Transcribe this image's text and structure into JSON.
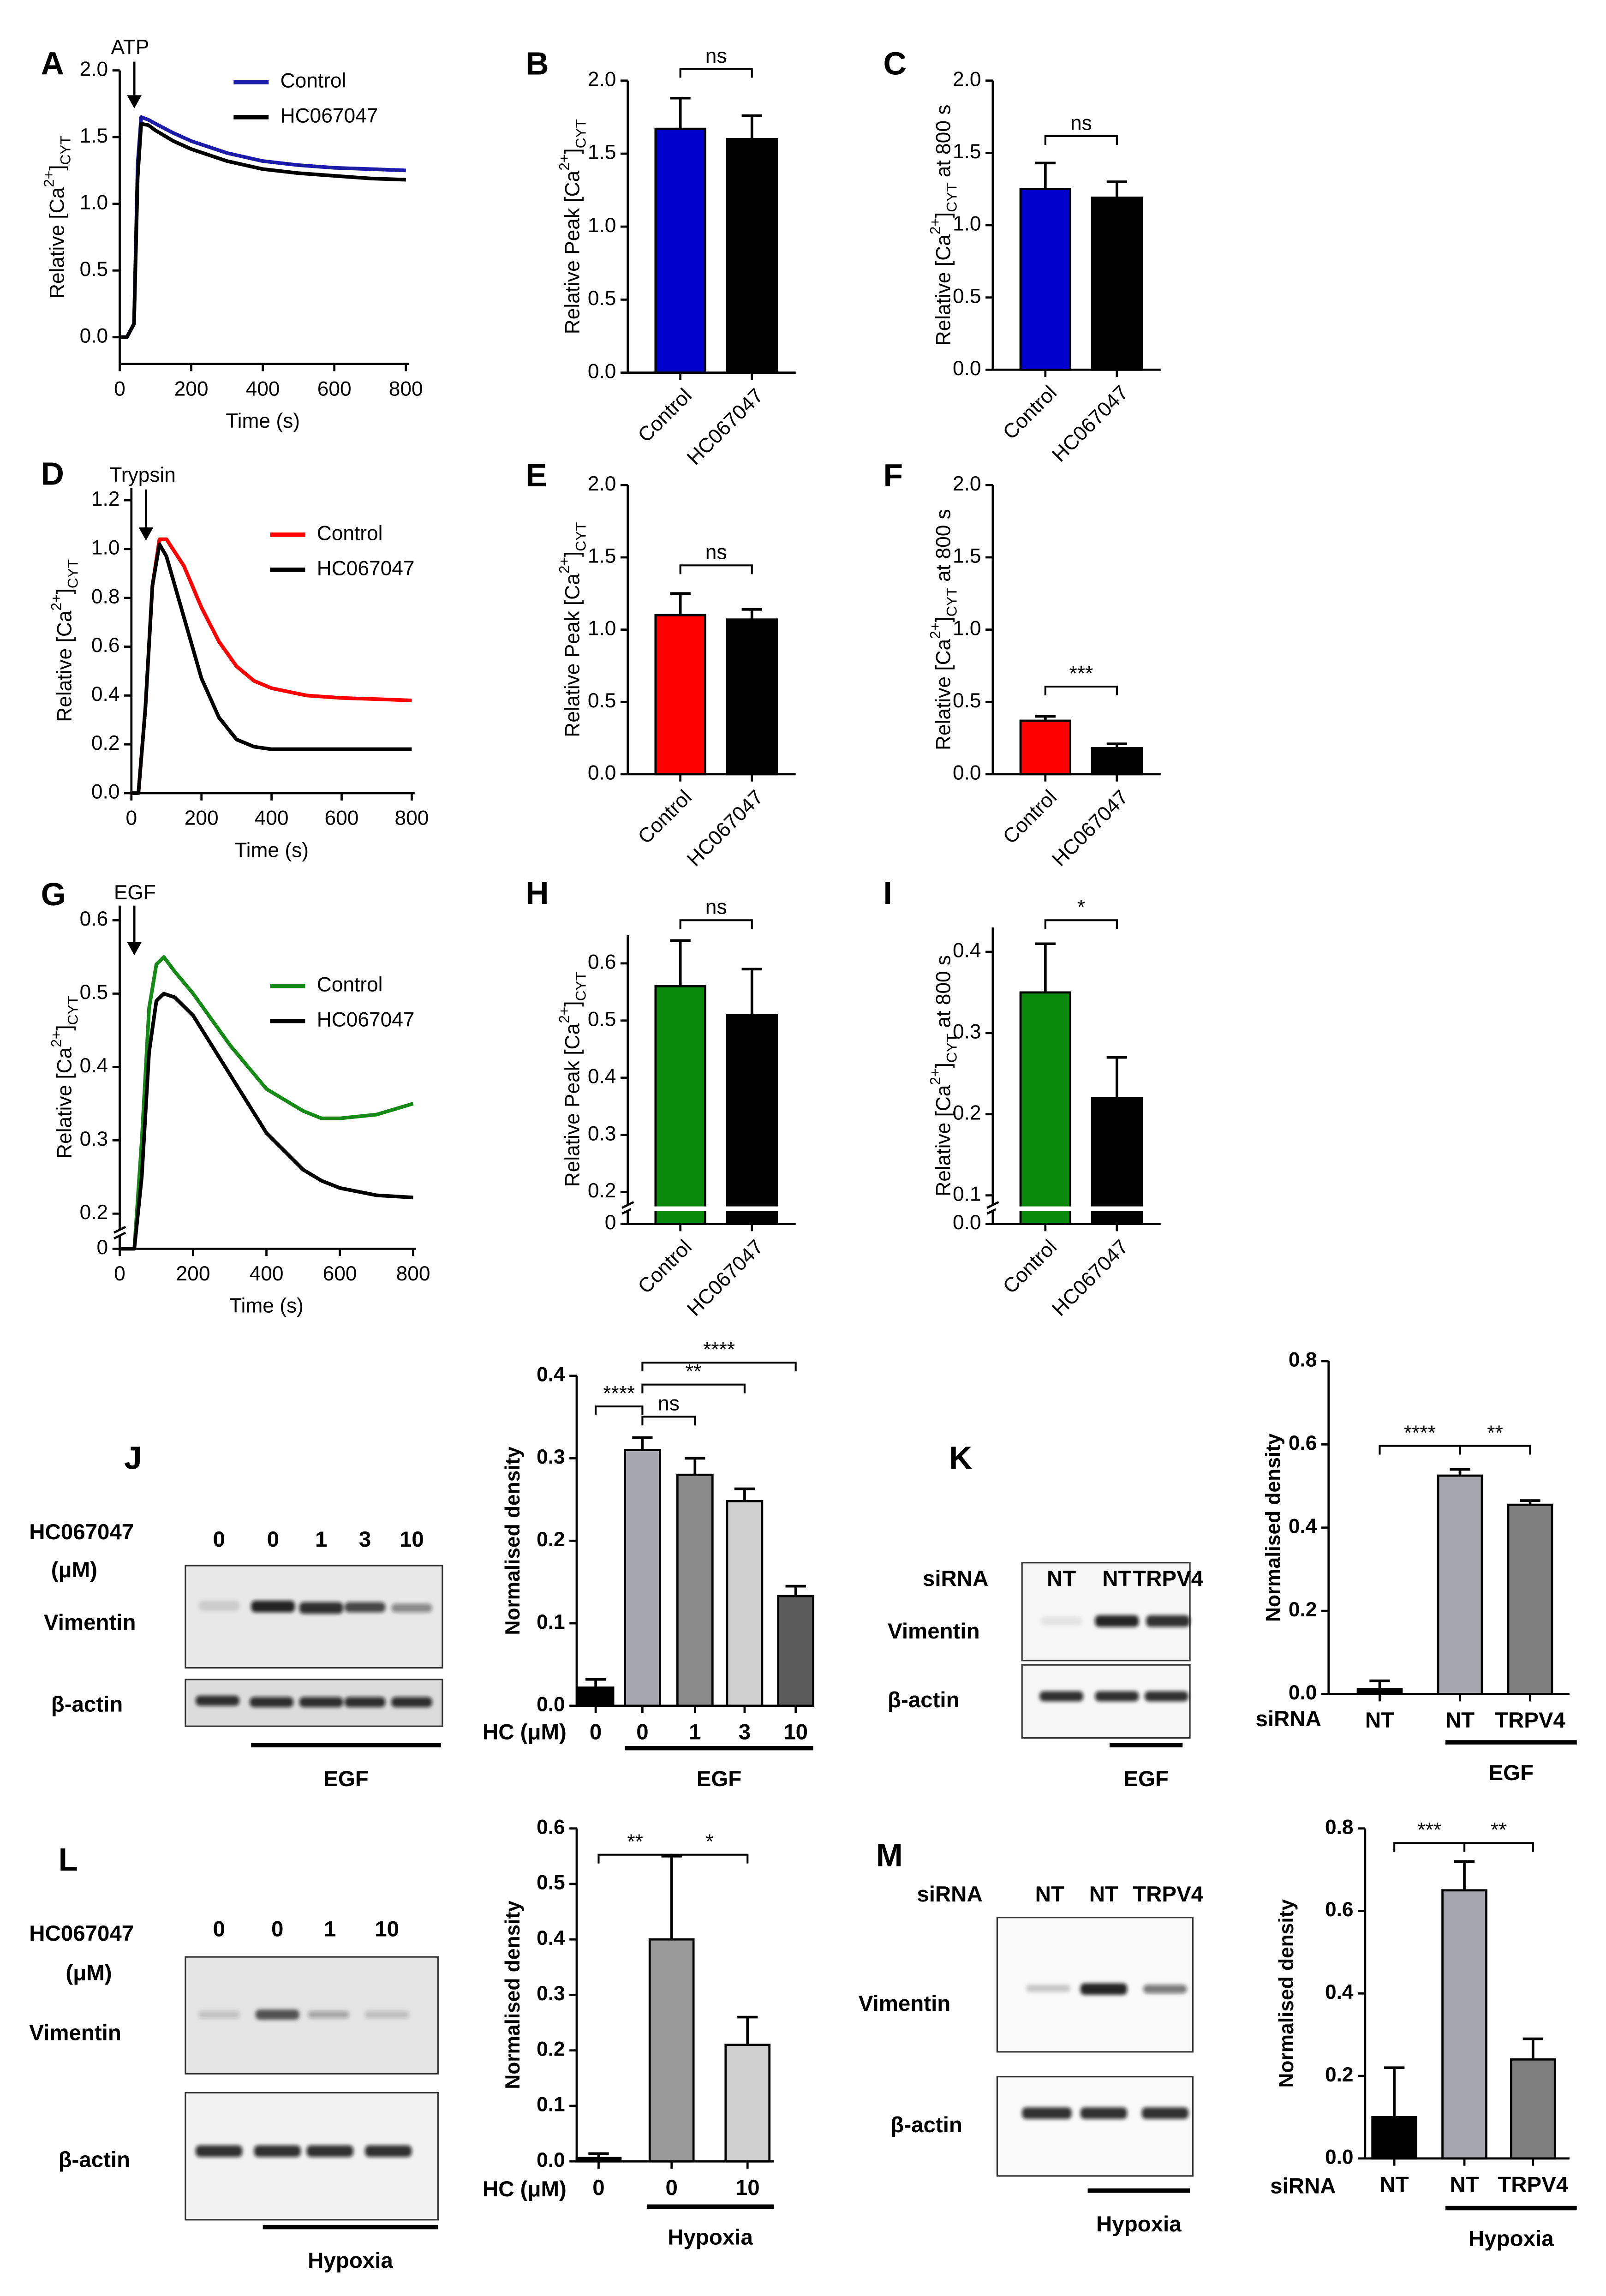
{
  "chart_data": [
    {
      "type": "line",
      "panel": "A",
      "annotation": "ATP",
      "xlabel": "Time (s)",
      "ylabel": [
        "Relative [Ca",
        "2+",
        "]",
        "CYT"
      ],
      "x": [
        0,
        20,
        40,
        50,
        60,
        80,
        100,
        150,
        200,
        300,
        400,
        500,
        600,
        700,
        800
      ],
      "series": [
        {
          "name": "Control",
          "color": "#1c1ca8",
          "values": [
            0,
            0,
            0.1,
            1.3,
            1.65,
            1.63,
            1.6,
            1.53,
            1.47,
            1.38,
            1.32,
            1.29,
            1.27,
            1.26,
            1.25
          ]
        },
        {
          "name": "HC067047",
          "color": "#000000",
          "values": [
            0,
            0,
            0.1,
            1.2,
            1.6,
            1.59,
            1.55,
            1.47,
            1.41,
            1.32,
            1.26,
            1.23,
            1.21,
            1.19,
            1.18
          ]
        }
      ],
      "xlim": [
        0,
        800
      ],
      "xticks": [
        0,
        200,
        400,
        600,
        800
      ],
      "ylim": [
        -0.2,
        2.0
      ],
      "yticks": [
        {
          "value": 0,
          "label": "0.0"
        },
        0.5,
        {
          "value": 1,
          "label": "1.0"
        },
        1.5,
        {
          "value": 2,
          "label": "2.0"
        }
      ]
    },
    {
      "type": "bar",
      "panel": "B",
      "ylabel": [
        "Relative Peak [Ca",
        "2+",
        "]",
        "CYT"
      ],
      "categories": [
        "Control",
        "HC067047"
      ],
      "values": [
        1.67,
        1.6
      ],
      "errors": [
        0.21,
        0.16
      ],
      "colors": [
        "#0000cc",
        "#000000"
      ],
      "annotations": [
        "ns"
      ],
      "ylim": [
        0,
        2.0
      ],
      "yticks": [
        {
          "value": 0,
          "label": "0.0"
        },
        0.5,
        {
          "value": 1,
          "label": "1.0"
        },
        1.5,
        {
          "value": 2,
          "label": "2.0"
        }
      ]
    },
    {
      "type": "bar",
      "panel": "C",
      "ylabel": [
        "Relative [Ca",
        "2+",
        "]",
        "CYT",
        " at 800 s"
      ],
      "categories": [
        "Control",
        "HC067047"
      ],
      "values": [
        1.25,
        1.19
      ],
      "errors": [
        0.18,
        0.11
      ],
      "colors": [
        "#0000cc",
        "#000000"
      ],
      "annotations": [
        "ns"
      ],
      "ylim": [
        0,
        2.0
      ],
      "yticks": [
        {
          "value": 0,
          "label": "0.0"
        },
        0.5,
        {
          "value": 1,
          "label": "1.0"
        },
        1.5,
        {
          "value": 2,
          "label": "2.0"
        }
      ]
    },
    {
      "type": "line",
      "panel": "D",
      "annotation": "Trypsin",
      "xlabel": "Time (s)",
      "ylabel": [
        "Relative [Ca",
        "2+",
        "]",
        "CYT"
      ],
      "x": [
        0,
        20,
        40,
        60,
        80,
        100,
        150,
        200,
        250,
        300,
        350,
        400,
        500,
        600,
        700,
        800
      ],
      "series": [
        {
          "name": "Control",
          "color": "#ff0000",
          "values": [
            0,
            0,
            0.35,
            0.85,
            1.04,
            1.04,
            0.93,
            0.76,
            0.62,
            0.52,
            0.46,
            0.43,
            0.4,
            0.39,
            0.385,
            0.38
          ]
        },
        {
          "name": "HC067047",
          "color": "#000000",
          "values": [
            0,
            0,
            0.35,
            0.85,
            1.02,
            0.97,
            0.72,
            0.47,
            0.31,
            0.22,
            0.19,
            0.18,
            0.18,
            0.18,
            0.18,
            0.18
          ]
        }
      ],
      "xlim": [
        0,
        800
      ],
      "xticks": [
        0,
        200,
        400,
        600,
        800
      ],
      "ylim": [
        0,
        1.25
      ],
      "yticks": [
        {
          "value": 0,
          "label": "0.0"
        },
        0.2,
        0.4,
        0.6,
        0.8,
        {
          "value": 1,
          "label": "1.0"
        },
        1.2
      ]
    },
    {
      "type": "bar",
      "panel": "E",
      "ylabel": [
        "Relative Peak [Ca",
        "2+",
        "]",
        "CYT"
      ],
      "categories": [
        "Control",
        "HC067047"
      ],
      "values": [
        1.1,
        1.07
      ],
      "errors": [
        0.15,
        0.07
      ],
      "colors": [
        "#ff0000",
        "#000000"
      ],
      "annotations": [
        "ns"
      ],
      "ylim": [
        0,
        2.0
      ],
      "yticks": [
        {
          "value": 0,
          "label": "0.0"
        },
        0.5,
        {
          "value": 1,
          "label": "1.0"
        },
        1.5,
        {
          "value": 2,
          "label": "2.0"
        }
      ]
    },
    {
      "type": "bar",
      "panel": "F",
      "ylabel": [
        "Relative [Ca",
        "2+",
        "]",
        "CYT",
        " at 800 s"
      ],
      "categories": [
        "Control",
        "HC067047"
      ],
      "values": [
        0.37,
        0.18
      ],
      "errors": [
        0.03,
        0.03
      ],
      "colors": [
        "#ff0000",
        "#000000"
      ],
      "annotations": [
        "***"
      ],
      "ylim": [
        0,
        2.0
      ],
      "yticks": [
        {
          "value": 0,
          "label": "0.0"
        },
        0.5,
        {
          "value": 1,
          "label": "1.0"
        },
        1.5,
        {
          "value": 2,
          "label": "2.0"
        }
      ]
    },
    {
      "type": "line",
      "panel": "G",
      "annotation": "EGF",
      "xlabel": "Time (s)",
      "ylabel": [
        "Relative [Ca",
        "2+",
        "]",
        "CYT"
      ],
      "x": [
        0,
        40,
        60,
        80,
        100,
        120,
        150,
        200,
        300,
        400,
        500,
        550,
        600,
        700,
        800
      ],
      "series": [
        {
          "name": "Control",
          "color": "#168a16",
          "values": [
            0,
            0,
            0.3,
            0.48,
            0.54,
            0.55,
            0.53,
            0.5,
            0.43,
            0.37,
            0.34,
            0.33,
            0.33,
            0.335,
            0.35
          ]
        },
        {
          "name": "HC067047",
          "color": "#000000",
          "values": [
            0,
            0,
            0.25,
            0.42,
            0.49,
            0.5,
            0.495,
            0.47,
            0.39,
            0.31,
            0.26,
            0.245,
            0.235,
            0.225,
            0.222
          ]
        }
      ],
      "xlim": [
        0,
        800
      ],
      "xticks": [
        0,
        200,
        400,
        600,
        800
      ],
      "ylim": [
        0,
        0.62
      ],
      "ybreak": [
        0.02,
        0.18
      ],
      "yticks": [
        0,
        0.2,
        0.3,
        0.4,
        0.5,
        0.6
      ]
    },
    {
      "type": "bar",
      "panel": "H",
      "ylabel": [
        "Relative Peak [Ca",
        "2+",
        "]",
        "CYT"
      ],
      "categories": [
        "Control",
        "HC067047"
      ],
      "values": [
        0.56,
        0.51
      ],
      "errors": [
        0.08,
        0.08
      ],
      "colors": [
        "#0a8a0a",
        "#000000"
      ],
      "annotations": [
        "ns"
      ],
      "ylim": [
        0,
        0.65
      ],
      "ybreak": [
        0.02,
        0.18
      ],
      "yticks": [
        0,
        0.2,
        0.3,
        0.4,
        0.5,
        0.6
      ]
    },
    {
      "type": "bar",
      "panel": "I",
      "ylabel": [
        "Relative [Ca",
        "2+",
        "]",
        "CYT",
        " at 800 s"
      ],
      "categories": [
        "Control",
        "HC067047"
      ],
      "values": [
        0.35,
        0.22
      ],
      "errors": [
        0.06,
        0.05
      ],
      "colors": [
        "#0a8a0a",
        "#000000"
      ],
      "annotations": [
        "*"
      ],
      "ylim": [
        0,
        0.43
      ],
      "ybreak": [
        0.01,
        0.09
      ],
      "yticks": [
        {
          "value": 0,
          "label": "0.0"
        },
        0.1,
        0.2,
        0.3,
        0.4
      ]
    },
    {
      "type": "blot",
      "panel": "J",
      "header": "HC067047",
      "unit": "(μM)",
      "lanes": [
        "0",
        "0",
        "1",
        "3",
        "10"
      ],
      "rows": [
        "Vimentin",
        "β-actin"
      ],
      "group_label": "EGF"
    },
    {
      "type": "bar",
      "ylabel": [
        "Normalised density"
      ],
      "xlabel": "HC (μM)",
      "group_label": "EGF",
      "categories": [
        "0",
        "0",
        "1",
        "3",
        "10"
      ],
      "values": [
        0.022,
        0.31,
        0.28,
        0.248,
        0.133
      ],
      "errors": [
        0.01,
        0.015,
        0.02,
        0.015,
        0.012
      ],
      "colors": [
        "#000000",
        "#a6a6ae",
        "#8a8a8a",
        "#cfcfcf",
        "#5a5a5a"
      ],
      "annotations": [
        "****",
        "ns",
        "**",
        "****"
      ],
      "ylim": [
        0,
        0.4
      ],
      "yticks": [
        {
          "value": 0,
          "label": "0.0"
        },
        0.1,
        0.2,
        0.3,
        0.4
      ]
    },
    {
      "type": "blot",
      "panel": "K",
      "header": "siRNA",
      "lanes": [
        "NT",
        "NT",
        "TRPV4"
      ],
      "rows": [
        "Vimentin",
        "β-actin"
      ],
      "group_label": "EGF"
    },
    {
      "type": "bar",
      "ylabel": [
        "Normalised density"
      ],
      "xlabel": "siRNA",
      "group_label": "EGF",
      "categories": [
        "NT",
        "NT",
        "TRPV4"
      ],
      "values": [
        0.012,
        0.525,
        0.455
      ],
      "errors": [
        0.02,
        0.015,
        0.01
      ],
      "colors": [
        "#000000",
        "#a6a6ae",
        "#7f7f7f"
      ],
      "annotations": [
        "****",
        "**"
      ],
      "ylim": [
        0,
        0.8
      ],
      "yticks": [
        {
          "value": 0,
          "label": "0.0"
        },
        0.2,
        0.4,
        0.6,
        0.8
      ]
    },
    {
      "type": "blot",
      "panel": "L",
      "header": "HC067047",
      "unit": "(μM)",
      "lanes": [
        "0",
        "0",
        "1",
        "10"
      ],
      "rows": [
        "Vimentin",
        "β-actin"
      ],
      "group_label": "Hypoxia"
    },
    {
      "type": "bar",
      "ylabel": [
        "Normalised density"
      ],
      "xlabel": "HC (μM)",
      "group_label": "Hypoxia",
      "categories": [
        "0",
        "0",
        "10"
      ],
      "values": [
        0.006,
        0.4,
        0.21
      ],
      "errors": [
        0.008,
        0.15,
        0.05
      ],
      "colors": [
        "#000000",
        "#9a9a9a",
        "#d0d0d0"
      ],
      "annotations": [
        "**",
        "*"
      ],
      "ylim": [
        0,
        0.6
      ],
      "yticks": [
        {
          "value": 0,
          "label": "0.0"
        },
        0.1,
        0.2,
        0.3,
        0.4,
        0.5,
        0.6
      ]
    },
    {
      "type": "blot",
      "panel": "M",
      "header": "siRNA",
      "lanes": [
        "NT",
        "NT",
        "TRPV4"
      ],
      "rows": [
        "Vimentin",
        "β-actin"
      ],
      "group_label": "Hypoxia"
    },
    {
      "type": "bar",
      "ylabel": [
        "Normalised density"
      ],
      "xlabel": "siRNA",
      "group_label": "Hypoxia",
      "categories": [
        "NT",
        "NT",
        "TRPV4"
      ],
      "values": [
        0.1,
        0.65,
        0.24
      ],
      "errors": [
        0.12,
        0.07,
        0.05
      ],
      "colors": [
        "#000000",
        "#a6a6ae",
        "#7f7f7f"
      ],
      "annotations": [
        "***",
        "**"
      ],
      "ylim": [
        0,
        0.8
      ],
      "yticks": [
        {
          "value": 0,
          "label": "0.0"
        },
        0.2,
        0.4,
        0.6,
        0.8
      ]
    }
  ]
}
